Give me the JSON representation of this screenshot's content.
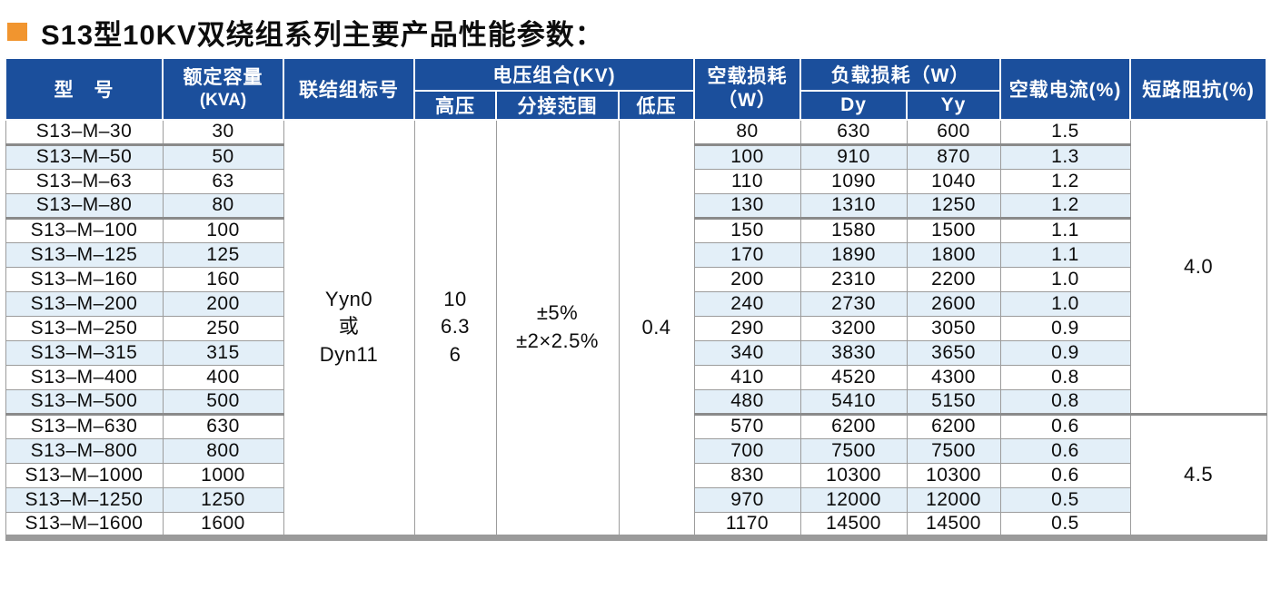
{
  "title": {
    "text": "S13型10KV双绕组系列主要产品性能参数："
  },
  "colors": {
    "header_blue": "#1B4F9C",
    "row_stripe": "#E3EFF8",
    "border_thin": "#9C9C9C",
    "border_thick": "#8A8A8A",
    "bottom_bar": "#9B9B9B",
    "title_bullet_orange": "#F1952F"
  },
  "table": {
    "headers": {
      "model": "型　号",
      "capacity_line1": "额定容量",
      "capacity_line2": "(KVA)",
      "connection": "联结组标号",
      "voltage_group": "电压组合(KV)",
      "hv": "高压",
      "tap": "分接范围",
      "lv": "低压",
      "noload_line1": "空载损耗",
      "noload_line2": "（W）",
      "load_group": "负载损耗（W）",
      "dy": "Dy",
      "yy": "Yy",
      "current": "空载电流(%)",
      "impedance": "短路阻抗(%)"
    },
    "merged": {
      "connection": [
        "Yyn0",
        "或",
        "Dyn11"
      ],
      "hv": [
        "10",
        "6.3",
        "6"
      ],
      "tap": [
        "±5%",
        "±2×2.5%"
      ],
      "lv": "0.4",
      "impedance_group1": "4.0",
      "impedance_group2": "4.5"
    },
    "rows": [
      {
        "model": "S13–M–30",
        "capacity": "30",
        "noload": "80",
        "dy": "630",
        "yy": "600",
        "current": "1.5"
      },
      {
        "model": "S13–M–50",
        "capacity": "50",
        "noload": "100",
        "dy": "910",
        "yy": "870",
        "current": "1.3"
      },
      {
        "model": "S13–M–63",
        "capacity": "63",
        "noload": "110",
        "dy": "1090",
        "yy": "1040",
        "current": "1.2"
      },
      {
        "model": "S13–M–80",
        "capacity": "80",
        "noload": "130",
        "dy": "1310",
        "yy": "1250",
        "current": "1.2"
      },
      {
        "model": "S13–M–100",
        "capacity": "100",
        "noload": "150",
        "dy": "1580",
        "yy": "1500",
        "current": "1.1"
      },
      {
        "model": "S13–M–125",
        "capacity": "125",
        "noload": "170",
        "dy": "1890",
        "yy": "1800",
        "current": "1.1"
      },
      {
        "model": "S13–M–160",
        "capacity": "160",
        "noload": "200",
        "dy": "2310",
        "yy": "2200",
        "current": "1.0"
      },
      {
        "model": "S13–M–200",
        "capacity": "200",
        "noload": "240",
        "dy": "2730",
        "yy": "2600",
        "current": "1.0"
      },
      {
        "model": "S13–M–250",
        "capacity": "250",
        "noload": "290",
        "dy": "3200",
        "yy": "3050",
        "current": "0.9"
      },
      {
        "model": "S13–M–315",
        "capacity": "315",
        "noload": "340",
        "dy": "3830",
        "yy": "3650",
        "current": "0.9"
      },
      {
        "model": "S13–M–400",
        "capacity": "400",
        "noload": "410",
        "dy": "4520",
        "yy": "4300",
        "current": "0.8"
      },
      {
        "model": "S13–M–500",
        "capacity": "500",
        "noload": "480",
        "dy": "5410",
        "yy": "5150",
        "current": "0.8"
      },
      {
        "model": "S13–M–630",
        "capacity": "630",
        "noload": "570",
        "dy": "6200",
        "yy": "6200",
        "current": "0.6"
      },
      {
        "model": "S13–M–800",
        "capacity": "800",
        "noload": "700",
        "dy": "7500",
        "yy": "7500",
        "current": "0.6"
      },
      {
        "model": "S13–M–1000",
        "capacity": "1000",
        "noload": "830",
        "dy": "10300",
        "yy": "10300",
        "current": "0.6"
      },
      {
        "model": "S13–M–1250",
        "capacity": "1250",
        "noload": "970",
        "dy": "12000",
        "yy": "12000",
        "current": "0.5"
      },
      {
        "model": "S13–M–1600",
        "capacity": "1600",
        "noload": "1170",
        "dy": "14500",
        "yy": "14500",
        "current": "0.5"
      }
    ],
    "group_end_row_indices": [
      0,
      3,
      11
    ],
    "impedance_group1_rowspan": 12,
    "impedance_group2_rowspan": 5
  }
}
